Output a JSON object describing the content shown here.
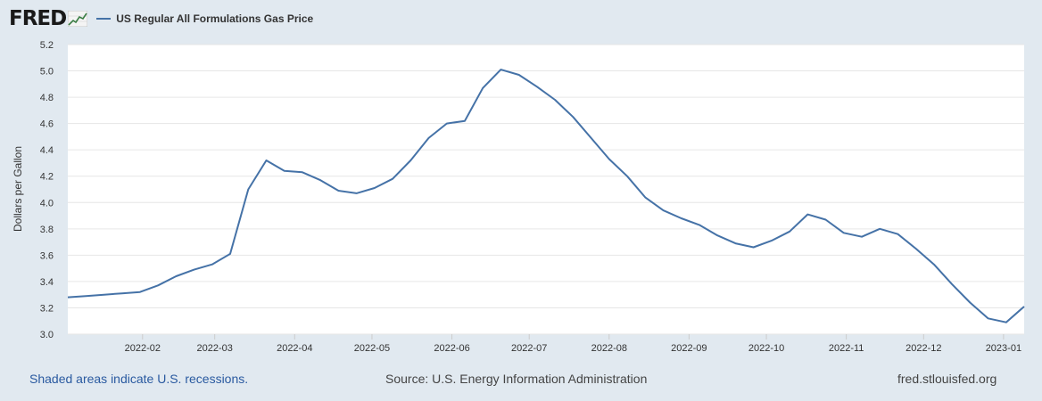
{
  "header": {
    "logo": "FRED",
    "logo_icon": "fred-trend-icon",
    "legend_label": "US Regular All Formulations Gas Price"
  },
  "footer": {
    "recessions_note": "Shaded areas indicate U.S. recessions.",
    "source": "Source: U.S. Energy Information Administration",
    "site": "fred.stlouisfed.org"
  },
  "colors": {
    "series": "#4572a7",
    "background": "#e1e9f0",
    "plot": "#ffffff",
    "grid": "#e6e6e6"
  },
  "chart_data": {
    "type": "line",
    "title": "",
    "ylabel": "Dollars per Gallon",
    "xlabel": "",
    "ylim": [
      3.0,
      5.2
    ],
    "yticks": [
      "3.0",
      "3.2",
      "3.4",
      "3.6",
      "3.8",
      "4.0",
      "4.2",
      "4.4",
      "4.6",
      "4.8",
      "5.0",
      "5.2"
    ],
    "xlim": [
      "2022-01-03",
      "2023-01-09"
    ],
    "xticks": [
      {
        "label": "2022-02",
        "date": "2022-02-01"
      },
      {
        "label": "2022-03",
        "date": "2022-03-01"
      },
      {
        "label": "2022-04",
        "date": "2022-04-01"
      },
      {
        "label": "2022-05",
        "date": "2022-05-01"
      },
      {
        "label": "2022-06",
        "date": "2022-06-01"
      },
      {
        "label": "2022-07",
        "date": "2022-07-01"
      },
      {
        "label": "2022-08",
        "date": "2022-08-01"
      },
      {
        "label": "2022-09",
        "date": "2022-09-01"
      },
      {
        "label": "2022-10",
        "date": "2022-10-01"
      },
      {
        "label": "2022-11",
        "date": "2022-11-01"
      },
      {
        "label": "2022-12",
        "date": "2022-12-01"
      },
      {
        "label": "2023-01",
        "date": "2023-01-01"
      }
    ],
    "grid": true,
    "series": [
      {
        "name": "US Regular All Formulations Gas Price",
        "x": [
          "2022-01-03",
          "2022-01-10",
          "2022-01-17",
          "2022-01-24",
          "2022-01-31",
          "2022-02-07",
          "2022-02-14",
          "2022-02-21",
          "2022-02-28",
          "2022-03-07",
          "2022-03-14",
          "2022-03-21",
          "2022-03-28",
          "2022-04-04",
          "2022-04-11",
          "2022-04-18",
          "2022-04-25",
          "2022-05-02",
          "2022-05-09",
          "2022-05-16",
          "2022-05-23",
          "2022-05-30",
          "2022-06-06",
          "2022-06-13",
          "2022-06-20",
          "2022-06-27",
          "2022-07-04",
          "2022-07-11",
          "2022-07-18",
          "2022-07-25",
          "2022-08-01",
          "2022-08-08",
          "2022-08-15",
          "2022-08-22",
          "2022-08-29",
          "2022-09-05",
          "2022-09-12",
          "2022-09-19",
          "2022-09-26",
          "2022-10-03",
          "2022-10-10",
          "2022-10-17",
          "2022-10-24",
          "2022-10-31",
          "2022-11-07",
          "2022-11-14",
          "2022-11-21",
          "2022-11-28",
          "2022-12-05",
          "2022-12-12",
          "2022-12-19",
          "2022-12-26",
          "2023-01-02",
          "2023-01-09"
        ],
        "values": [
          3.28,
          3.29,
          3.3,
          3.31,
          3.32,
          3.37,
          3.44,
          3.49,
          3.53,
          3.61,
          4.1,
          4.32,
          4.24,
          4.23,
          4.17,
          4.09,
          4.07,
          4.11,
          4.18,
          4.32,
          4.49,
          4.6,
          4.62,
          4.87,
          5.01,
          4.97,
          4.88,
          4.78,
          4.65,
          4.49,
          4.33,
          4.2,
          4.04,
          3.94,
          3.88,
          3.83,
          3.75,
          3.69,
          3.66,
          3.71,
          3.78,
          3.91,
          3.87,
          3.77,
          3.74,
          3.8,
          3.76,
          3.65,
          3.53,
          3.38,
          3.24,
          3.12,
          3.09,
          3.21
        ]
      }
    ]
  }
}
